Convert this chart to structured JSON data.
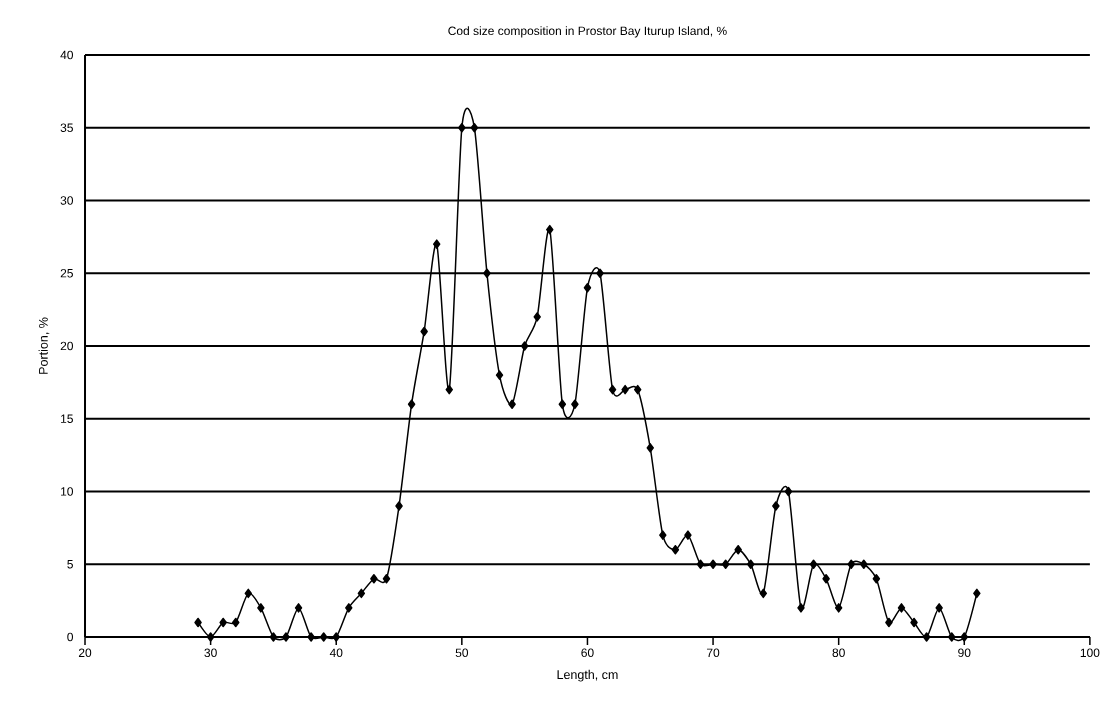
{
  "chart_data": {
    "type": "line",
    "title": "Cod size composition in Prostor Bay Iturup Island, %",
    "xlabel": "Length, cm",
    "ylabel": "Portion, %",
    "x": [
      29,
      30,
      31,
      32,
      33,
      34,
      35,
      36,
      37,
      38,
      39,
      40,
      41,
      42,
      43,
      44,
      45,
      46,
      47,
      48,
      49,
      50,
      51,
      52,
      53,
      54,
      55,
      56,
      57,
      58,
      59,
      60,
      61,
      62,
      63,
      64,
      65,
      66,
      67,
      68,
      69,
      70,
      71,
      72,
      73,
      74,
      75,
      76,
      77,
      78,
      79,
      80,
      81,
      82,
      83,
      84,
      85,
      86,
      87,
      88,
      89,
      90,
      91
    ],
    "values": [
      1,
      0,
      1,
      1,
      3,
      2,
      0,
      0,
      2,
      0,
      0,
      0,
      2,
      3,
      4,
      4,
      9,
      16,
      21,
      27,
      17,
      35,
      35,
      25,
      18,
      16,
      20,
      22,
      28,
      16,
      16,
      24,
      25,
      17,
      17,
      17,
      13,
      7,
      6,
      7,
      5,
      5,
      5,
      6,
      5,
      3,
      9,
      10,
      2,
      5,
      4,
      2,
      5,
      5,
      4,
      1,
      2,
      1,
      0,
      2,
      0,
      0,
      3
    ],
    "color": "#000000",
    "marker": "diamond",
    "line_style": "solid",
    "xlim": [
      20,
      100
    ],
    "xticks": [
      20,
      30,
      40,
      50,
      60,
      70,
      80,
      90,
      100
    ],
    "ylim": [
      0,
      40
    ],
    "yticks": [
      0,
      5,
      10,
      15,
      20,
      25,
      30,
      35,
      40
    ],
    "grid": "y"
  }
}
